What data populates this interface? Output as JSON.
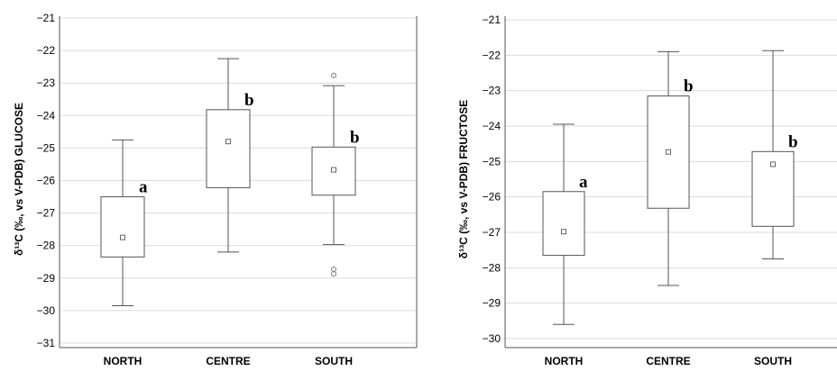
{
  "chart_data": [
    {
      "type": "box",
      "ylabel": "δ¹³C (‰, vs V-PDB) GLUCOSE",
      "ylim": [
        -31,
        -21
      ],
      "yticks": [
        -21,
        -22,
        -23,
        -24,
        -25,
        -26,
        -27,
        -28,
        -29,
        -30,
        -31
      ],
      "grid": "horizontal",
      "categories": [
        "NORTH",
        "CENTRE",
        "SOUTH"
      ],
      "boxes": [
        {
          "category": "NORTH",
          "whisker_low": -29.85,
          "q1": -28.35,
          "median_marker": -27.75,
          "q3": -26.5,
          "whisker_high": -24.75,
          "outliers": [],
          "letter": "a"
        },
        {
          "category": "CENTRE",
          "whisker_low": -28.2,
          "q1": -26.22,
          "median_marker": -24.8,
          "q3": -23.82,
          "whisker_high": -22.25,
          "outliers": [],
          "letter": "b"
        },
        {
          "category": "SOUTH",
          "whisker_low": -27.97,
          "q1": -26.45,
          "median_marker": -25.67,
          "q3": -24.97,
          "whisker_high": -23.08,
          "outliers": [
            -22.77,
            -28.73,
            -28.87
          ],
          "letter": "b"
        }
      ]
    },
    {
      "type": "box",
      "ylabel": "δ¹³C (‰, vs V-PDB) FRUCTOSE",
      "ylim": [
        -30.1,
        -21
      ],
      "yticks": [
        -21,
        -22,
        -23,
        -24,
        -25,
        -26,
        -27,
        -28,
        -29,
        -30
      ],
      "grid": "horizontal",
      "categories": [
        "NORTH",
        "CENTRE",
        "SOUTH"
      ],
      "boxes": [
        {
          "category": "NORTH",
          "whisker_low": -29.6,
          "q1": -27.65,
          "median_marker": -26.98,
          "q3": -25.85,
          "whisker_high": -23.95,
          "outliers": [],
          "letter": "a"
        },
        {
          "category": "CENTRE",
          "whisker_low": -28.5,
          "q1": -26.32,
          "median_marker": -24.73,
          "q3": -23.15,
          "whisker_high": -21.9,
          "outliers": [],
          "letter": "b"
        },
        {
          "category": "SOUTH",
          "whisker_low": -27.75,
          "q1": -26.83,
          "median_marker": -25.08,
          "q3": -24.72,
          "whisker_high": -21.87,
          "outliers": [],
          "letter": "b"
        }
      ]
    }
  ]
}
